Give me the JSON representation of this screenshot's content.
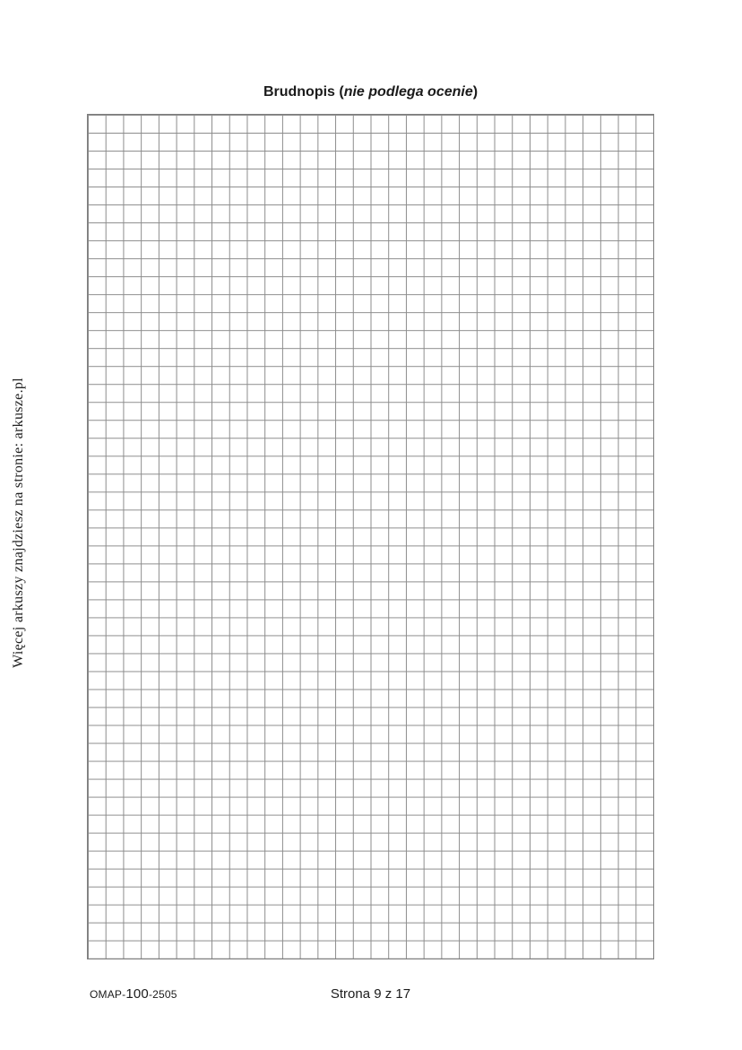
{
  "title": {
    "prefix": "Brudnopis (",
    "emphasis": "nie podlega ocenie",
    "suffix": ")"
  },
  "watermark": {
    "text": "Więcej arkuszy znajdziesz na stronie: arkusze.pl"
  },
  "grid": {
    "columns": 32,
    "rows": 47,
    "line_color": "#8c8c8c"
  },
  "footer": {
    "code": {
      "part1": "OMAP-",
      "part2": "100",
      "part3": "-2505"
    },
    "page_indicator": "Strona 9 z 17"
  }
}
